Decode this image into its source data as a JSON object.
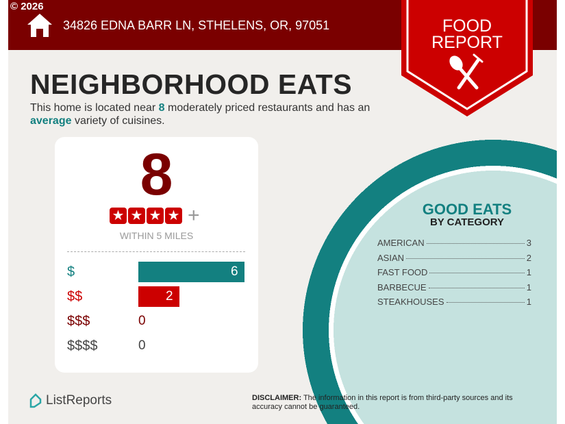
{
  "header": {
    "copyright": "© 2026",
    "address": "34826 EDNA BARR LN, STHELENS, OR, 97051",
    "icon": "house-icon"
  },
  "badge": {
    "line1": "FOOD",
    "line2": "REPORT",
    "icon": "spoon-fork-icon"
  },
  "title": "NEIGHBORHOOD EATS",
  "description": {
    "pre": "This home is located near ",
    "count": "8",
    "mid": " moderately priced restaurants and has an ",
    "variety": "average",
    "post": " variety of cuisines."
  },
  "summary": {
    "count": "8",
    "stars": 4,
    "plus": "+",
    "radius": "WITHIN 5 MILES"
  },
  "price_levels": [
    {
      "label": "$",
      "count": 6,
      "color": "#138080"
    },
    {
      "label": "$$",
      "count": 2,
      "color": "#cc0000"
    },
    {
      "label": "$$$",
      "count": 0,
      "color": "#7a0000"
    },
    {
      "label": "$$$$",
      "count": 0,
      "color": "#444444"
    }
  ],
  "categories_title": "GOOD EATS",
  "categories_subtitle": "BY CATEGORY",
  "categories": [
    {
      "name": "AMERICAN",
      "count": "3"
    },
    {
      "name": "ASIAN",
      "count": "2"
    },
    {
      "name": "FAST FOOD",
      "count": "1"
    },
    {
      "name": "BARBECUE",
      "count": "1"
    },
    {
      "name": "STEAKHOUSES",
      "count": "1"
    }
  ],
  "footer": {
    "logo": "ListReports",
    "disclaimer_label": "DISCLAIMER:",
    "disclaimer": " The information in this report is from third-party sources and its accuracy cannot be guaranteed."
  },
  "colors": {
    "dark_red": "#7a0000",
    "red": "#cc0000",
    "teal": "#138080",
    "light_teal": "#c5e2df"
  }
}
